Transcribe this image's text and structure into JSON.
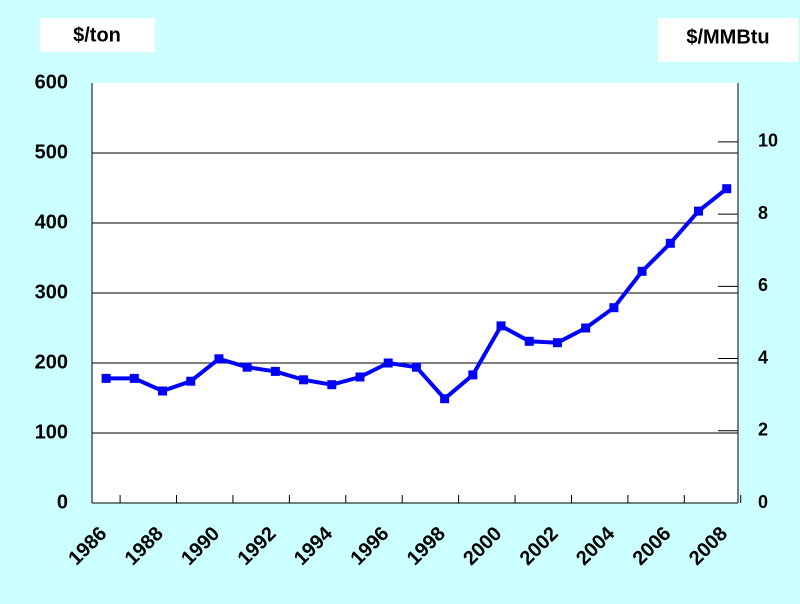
{
  "chart_data": {
    "type": "line",
    "y_label": "$/ton",
    "y2_label": "$/MMBtu",
    "x": [
      1986,
      1987,
      1988,
      1989,
      1990,
      1991,
      1992,
      1993,
      1994,
      1995,
      1996,
      1997,
      1998,
      1999,
      2000,
      2001,
      2002,
      2003,
      2004,
      2005,
      2006,
      2007,
      2008
    ],
    "series": [
      {
        "color": "#0000ff",
        "values": [
          178,
          178,
          160,
          174,
          206,
          194,
          188,
          176,
          169,
          180,
          200,
          194,
          149,
          183,
          253,
          231,
          229,
          250,
          279,
          331,
          371,
          417,
          449
        ]
      }
    ],
    "xlim": [
      1985.5,
      2008.4
    ],
    "xticks": [
      1986,
      1988,
      1990,
      1992,
      1994,
      1996,
      1998,
      2000,
      2002,
      2004,
      2006,
      2008
    ],
    "ylim": [
      0,
      600
    ],
    "yticks": [
      0,
      100,
      200,
      300,
      400,
      500,
      600
    ],
    "y2lim": [
      0,
      11.63
    ],
    "y2ticks": [
      0,
      2,
      4,
      6,
      8,
      10
    ],
    "grid": true
  }
}
